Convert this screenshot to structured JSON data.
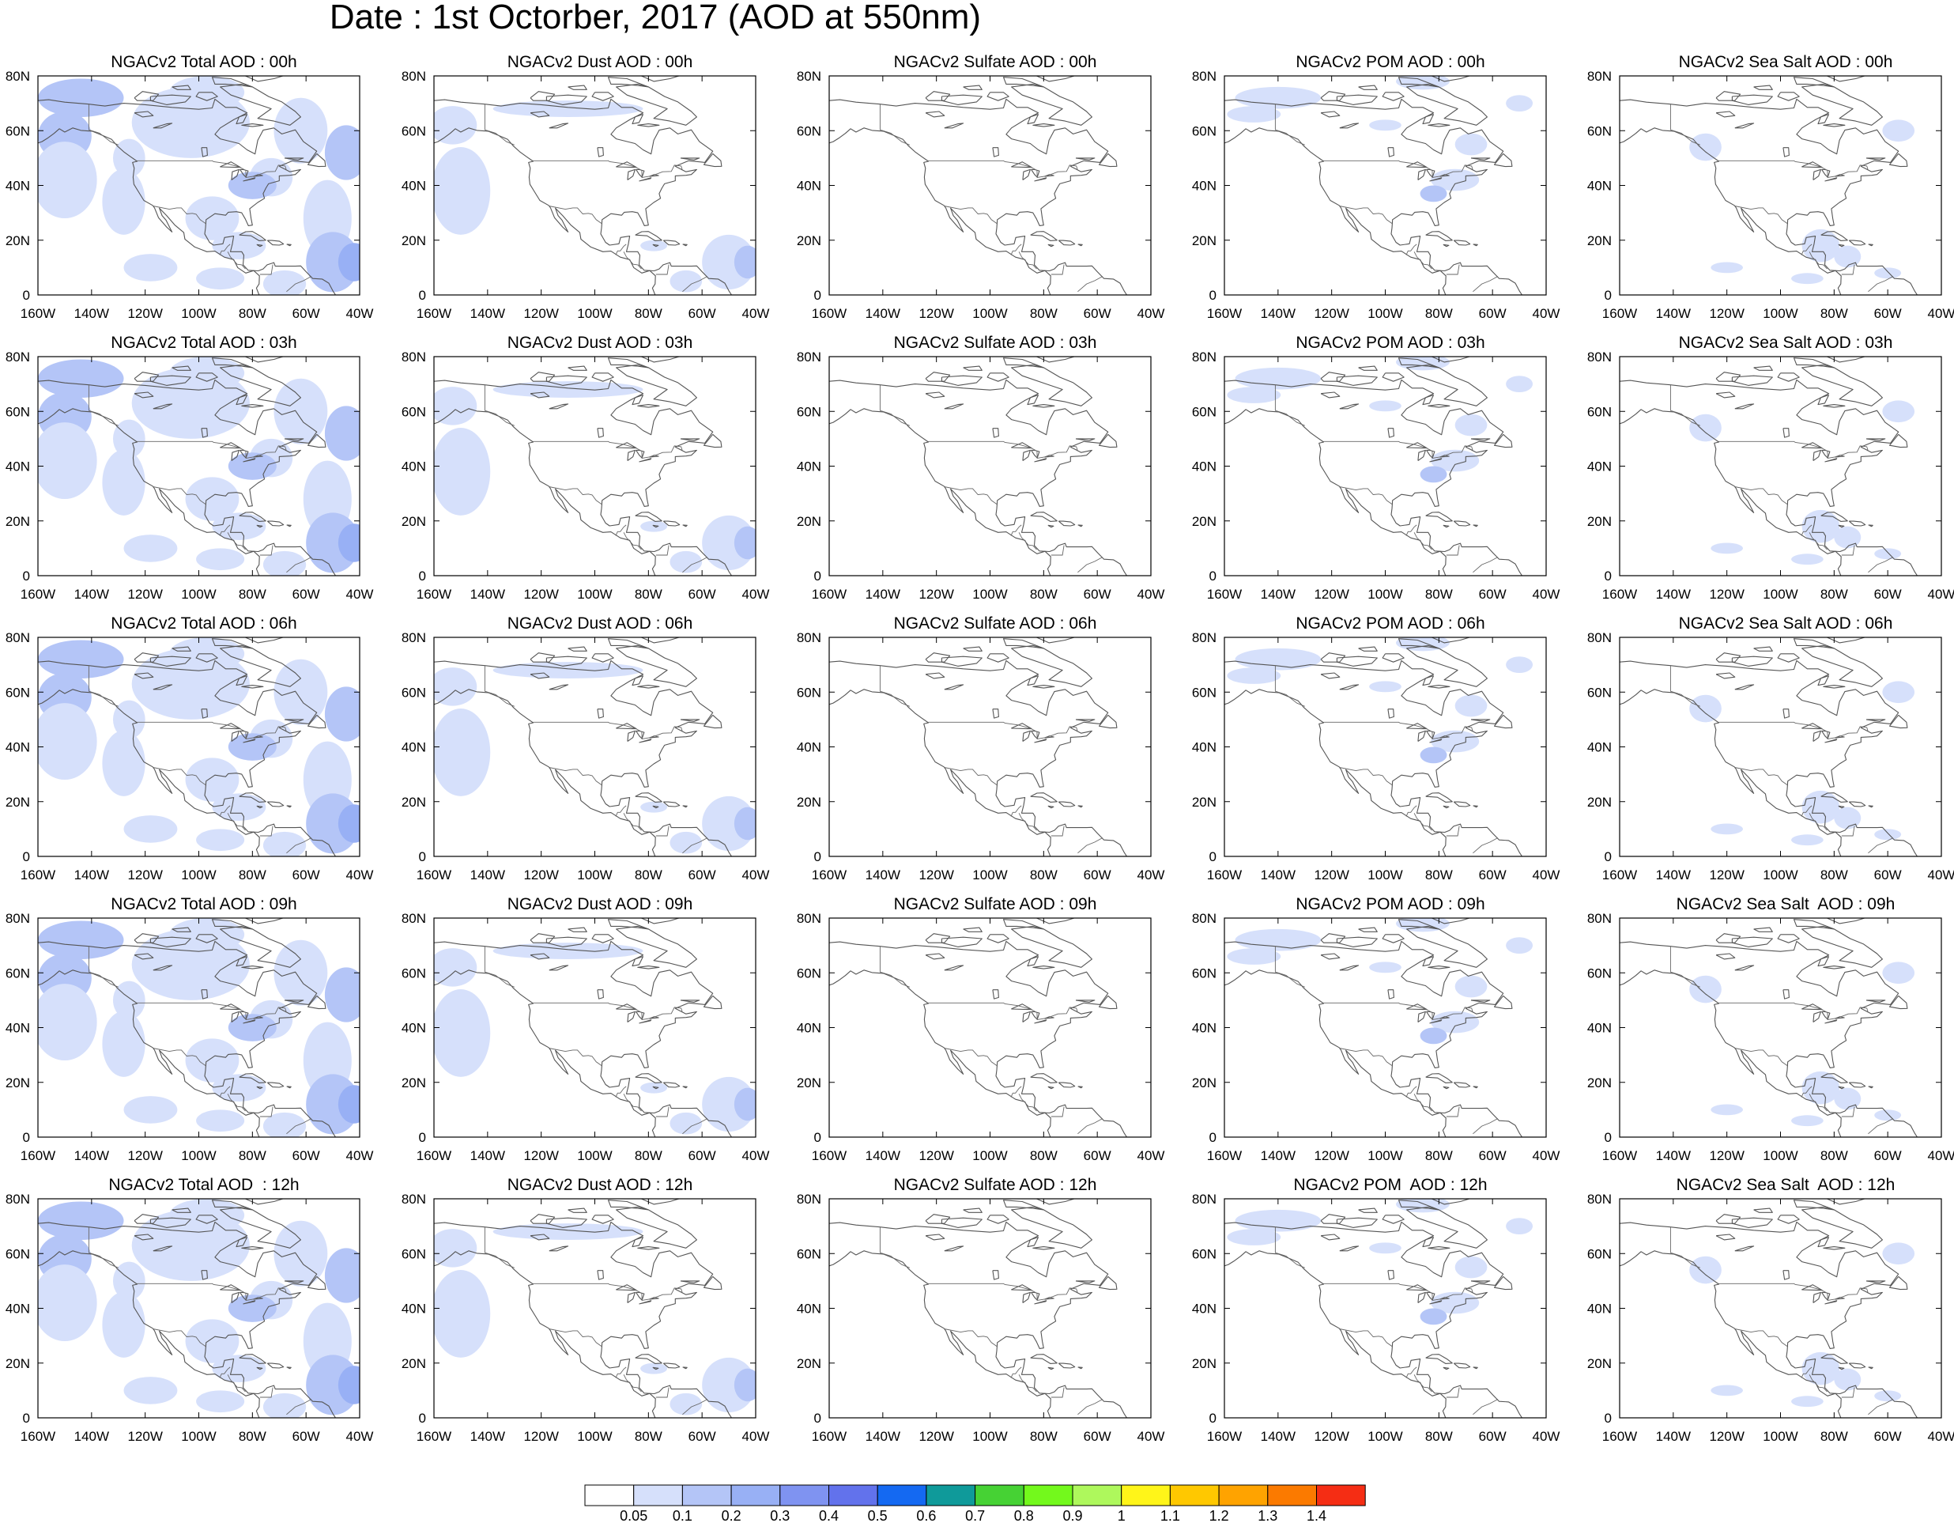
{
  "title": "Date : 1st Octorber, 2017 (AOD at 550nm)",
  "panels": [
    [
      "NGACv2 Total AOD : 00h",
      "NGACv2 Dust AOD : 00h",
      "NGACv2 Sulfate AOD : 00h",
      "NGACv2 POM AOD : 00h",
      "NGACv2 Sea Salt AOD : 00h"
    ],
    [
      "NGACv2 Total AOD : 03h",
      "NGACv2 Dust AOD : 03h",
      "NGACv2 Sulfate AOD : 03h",
      "NGACv2 POM AOD : 03h",
      "NGACv2 Sea Salt AOD : 03h"
    ],
    [
      "NGACv2 Total AOD : 06h",
      "NGACv2 Dust AOD : 06h",
      "NGACv2 Sulfate AOD : 06h",
      "NGACv2 POM AOD : 06h",
      "NGACv2 Sea Salt AOD : 06h"
    ],
    [
      "NGACv2 Total AOD : 09h",
      "NGACv2 Dust AOD : 09h",
      "NGACv2 Sulfate AOD : 09h",
      "NGACv2 POM AOD : 09h",
      "NGACv2 Sea Salt  AOD : 09h"
    ],
    [
      "NGACv2 Total AOD  : 12h",
      "NGACv2 Dust AOD : 12h",
      "NGACv2 Sulfate AOD : 12h",
      "NGACv2 POM  AOD : 12h",
      "NGACv2 Sea Salt  AOD : 12h"
    ]
  ],
  "map": {
    "lon_ticks": [
      "160W",
      "140W",
      "120W",
      "100W",
      "80W",
      "60W",
      "40W"
    ],
    "lat_ticks": [
      "0",
      "20N",
      "40N",
      "60N",
      "80N"
    ],
    "lon_range": [
      -160,
      -40
    ],
    "lat_range": [
      0,
      80
    ]
  },
  "colorbar": {
    "labels": [
      "0.05",
      "0.1",
      "0.2",
      "0.3",
      "0.4",
      "0.5",
      "0.6",
      "0.7",
      "0.8",
      "0.9",
      "1",
      "1.1",
      "1.2",
      "1.3",
      "1.4"
    ],
    "colors": [
      "#ffffff",
      "#d6e0fb",
      "#b4c5f7",
      "#98b0f5",
      "#7f93f1",
      "#6272ec",
      "#1469f2",
      "#0f9a9a",
      "#46d234",
      "#73f91c",
      "#aef85c",
      "#fff519",
      "#ffc800",
      "#ffa300",
      "#fb7a00",
      "#f52d14"
    ]
  },
  "species_colors": {
    "aerosol_light": "#d6e0fb",
    "aerosol_mid": "#b4c5f7",
    "aerosol_high": "#98b0f5",
    "aerosol_peak": "#7f93f1"
  }
}
